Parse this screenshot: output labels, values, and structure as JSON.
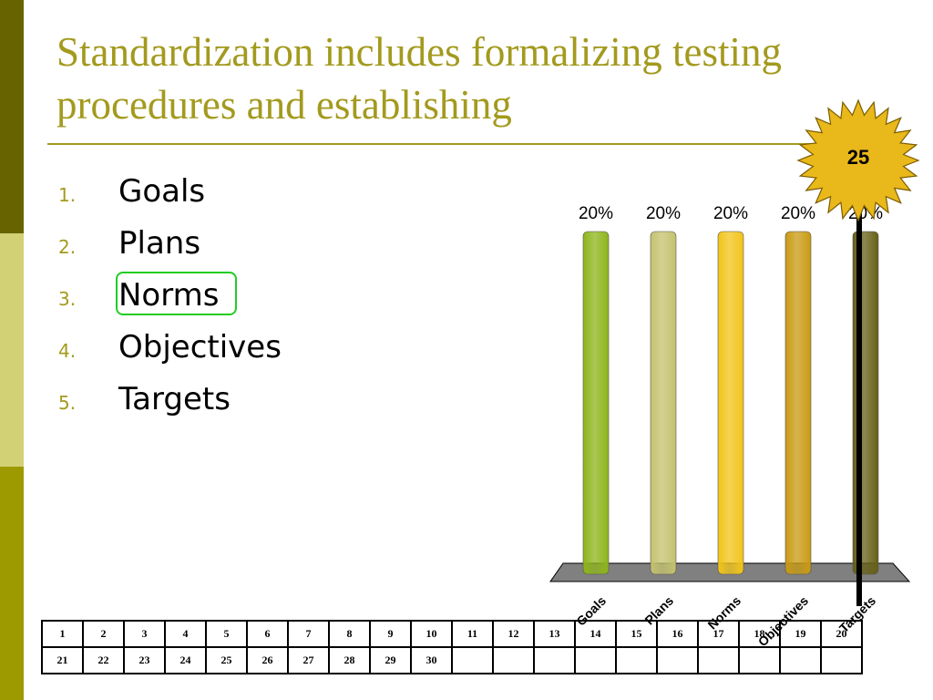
{
  "slide": {
    "title": "Standardization includes formalizing testing procedures and establishing",
    "options": [
      {
        "num": "1.",
        "label": "Goals"
      },
      {
        "num": "2.",
        "label": "Plans"
      },
      {
        "num": "3.",
        "label": "Norms"
      },
      {
        "num": "4.",
        "label": "Objectives"
      },
      {
        "num": "5.",
        "label": "Targets"
      }
    ],
    "selected_option": "Norms",
    "timer": "25",
    "response_grid": [
      [
        "1",
        "2",
        "3",
        "4",
        "5",
        "6",
        "7",
        "8",
        "9",
        "10",
        "11",
        "12",
        "13",
        "14",
        "15",
        "16",
        "17",
        "18",
        "19",
        "20"
      ],
      [
        "21",
        "22",
        "23",
        "24",
        "25",
        "26",
        "27",
        "28",
        "29",
        "30",
        "",
        "",
        "",
        "",
        "",
        "",
        "",
        "",
        "",
        ""
      ]
    ]
  },
  "colors": {
    "accent": "#a39a1e",
    "sidebar": [
      "#676400",
      "#d2d175",
      "#9d9a00"
    ],
    "highlight": "#22cc22",
    "timer_fill": "#e9b81a"
  },
  "chart_data": {
    "type": "bar",
    "categories": [
      "Goals",
      "Plans",
      "Norms",
      "Objectives",
      "Targets"
    ],
    "values": [
      20,
      20,
      20,
      20,
      20
    ],
    "data_labels": [
      "20%",
      "20%",
      "20%",
      "20%",
      "20%"
    ],
    "colors": [
      "#8db51b",
      "#c4c26e",
      "#f2c419",
      "#c99a12",
      "#666016"
    ],
    "ylim": [
      0,
      20
    ],
    "grid": false,
    "legend": "none"
  }
}
